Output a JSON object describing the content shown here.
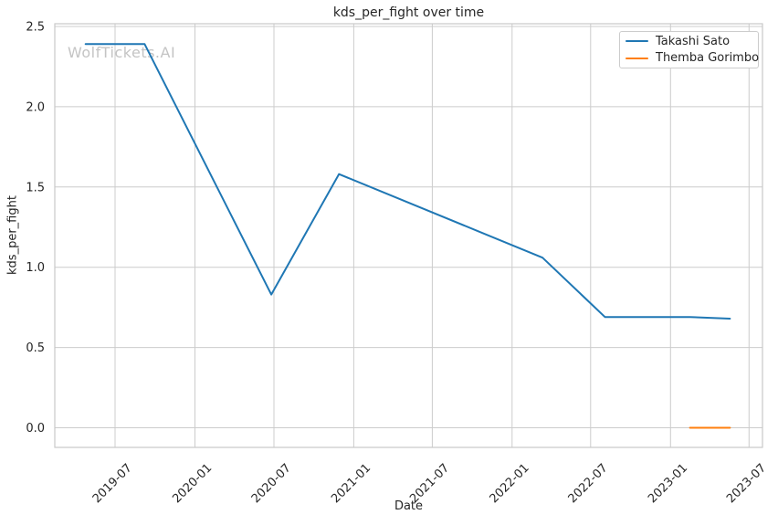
{
  "figure": {
    "watermark": "WolfTickets.AI"
  },
  "chart_data": {
    "type": "line",
    "title": "kds_per_fight over time",
    "xlabel": "Date",
    "ylabel": "kds_per_fight",
    "grid": true,
    "legend_position": "upper right",
    "xlim": [
      "2019-02-12",
      "2023-08-01"
    ],
    "ylim": [
      -0.122,
      2.517
    ],
    "x_ticks": [
      "2019-07-01",
      "2020-01-01",
      "2020-07-01",
      "2021-01-01",
      "2021-07-01",
      "2022-01-01",
      "2022-07-01",
      "2023-01-01",
      "2023-07-01"
    ],
    "x_tick_labels": [
      "2019-07",
      "2020-01",
      "2020-07",
      "2021-01",
      "2021-07",
      "2022-01",
      "2022-07",
      "2023-01",
      "2023-07"
    ],
    "y_ticks": [
      0.0,
      0.5,
      1.0,
      1.5,
      2.0,
      2.5
    ],
    "y_tick_labels": [
      "0.0",
      "0.5",
      "1.0",
      "1.5",
      "2.0",
      "2.5"
    ],
    "series": [
      {
        "name": "Takashi Sato",
        "color": "#1f77b4",
        "points": [
          {
            "date": "2019-04-24",
            "value": 2.39
          },
          {
            "date": "2019-09-07",
            "value": 2.39
          },
          {
            "date": "2020-06-25",
            "value": 0.83
          },
          {
            "date": "2020-11-28",
            "value": 1.58
          },
          {
            "date": "2022-03-12",
            "value": 1.06
          },
          {
            "date": "2022-08-03",
            "value": 0.69
          },
          {
            "date": "2023-02-15",
            "value": 0.69
          },
          {
            "date": "2023-05-18",
            "value": 0.68
          }
        ]
      },
      {
        "name": "Themba Gorimbo",
        "color": "#ff7f0e",
        "points": [
          {
            "date": "2023-02-15",
            "value": 0.0
          },
          {
            "date": "2023-05-18",
            "value": 0.0
          }
        ]
      }
    ]
  },
  "colors": {
    "background": "#ffffff",
    "grid": "#cccccc",
    "spine": "#c9c9c9",
    "text": "#262626",
    "watermark": "#c4c4c4"
  }
}
